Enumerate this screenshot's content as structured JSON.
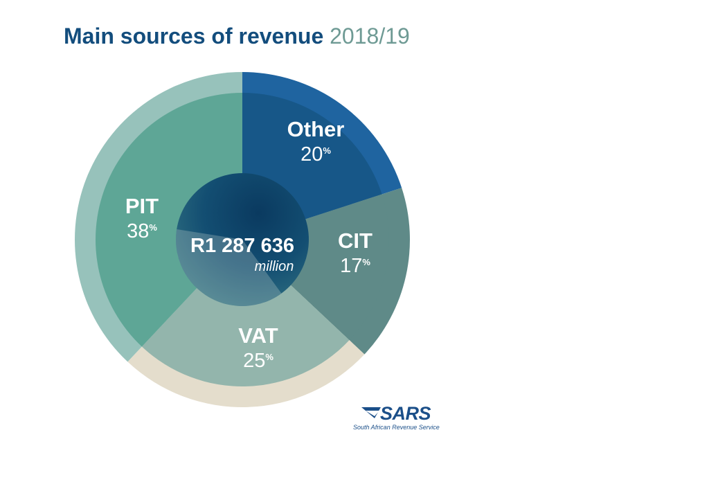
{
  "title": {
    "main": "Main sources of revenue",
    "year": "2018/19"
  },
  "chart_data": {
    "type": "pie",
    "title": "Main sources of revenue 2018/19",
    "center": {
      "total": "R1 287 636",
      "unit": "million"
    },
    "percent_symbol": "%",
    "slices": [
      {
        "label": "Other",
        "value": 20,
        "outer_color": "#1f64a0",
        "inner_color": "#175788"
      },
      {
        "label": "CIT",
        "value": 17,
        "outer_color": "#5f8a88",
        "inner_color": "#5f8a88"
      },
      {
        "label": "VAT",
        "value": 25,
        "outer_color": "#e4ddcc",
        "inner_color": "#93b5ac"
      },
      {
        "label": "PIT",
        "value": 38,
        "outer_color": "#97c2bb",
        "inner_color": "#5ea696"
      }
    ],
    "hub_color": "#0d4368"
  },
  "logo": {
    "name": "SARS",
    "tagline": "South African Revenue Service",
    "color": "#1b4f89"
  }
}
